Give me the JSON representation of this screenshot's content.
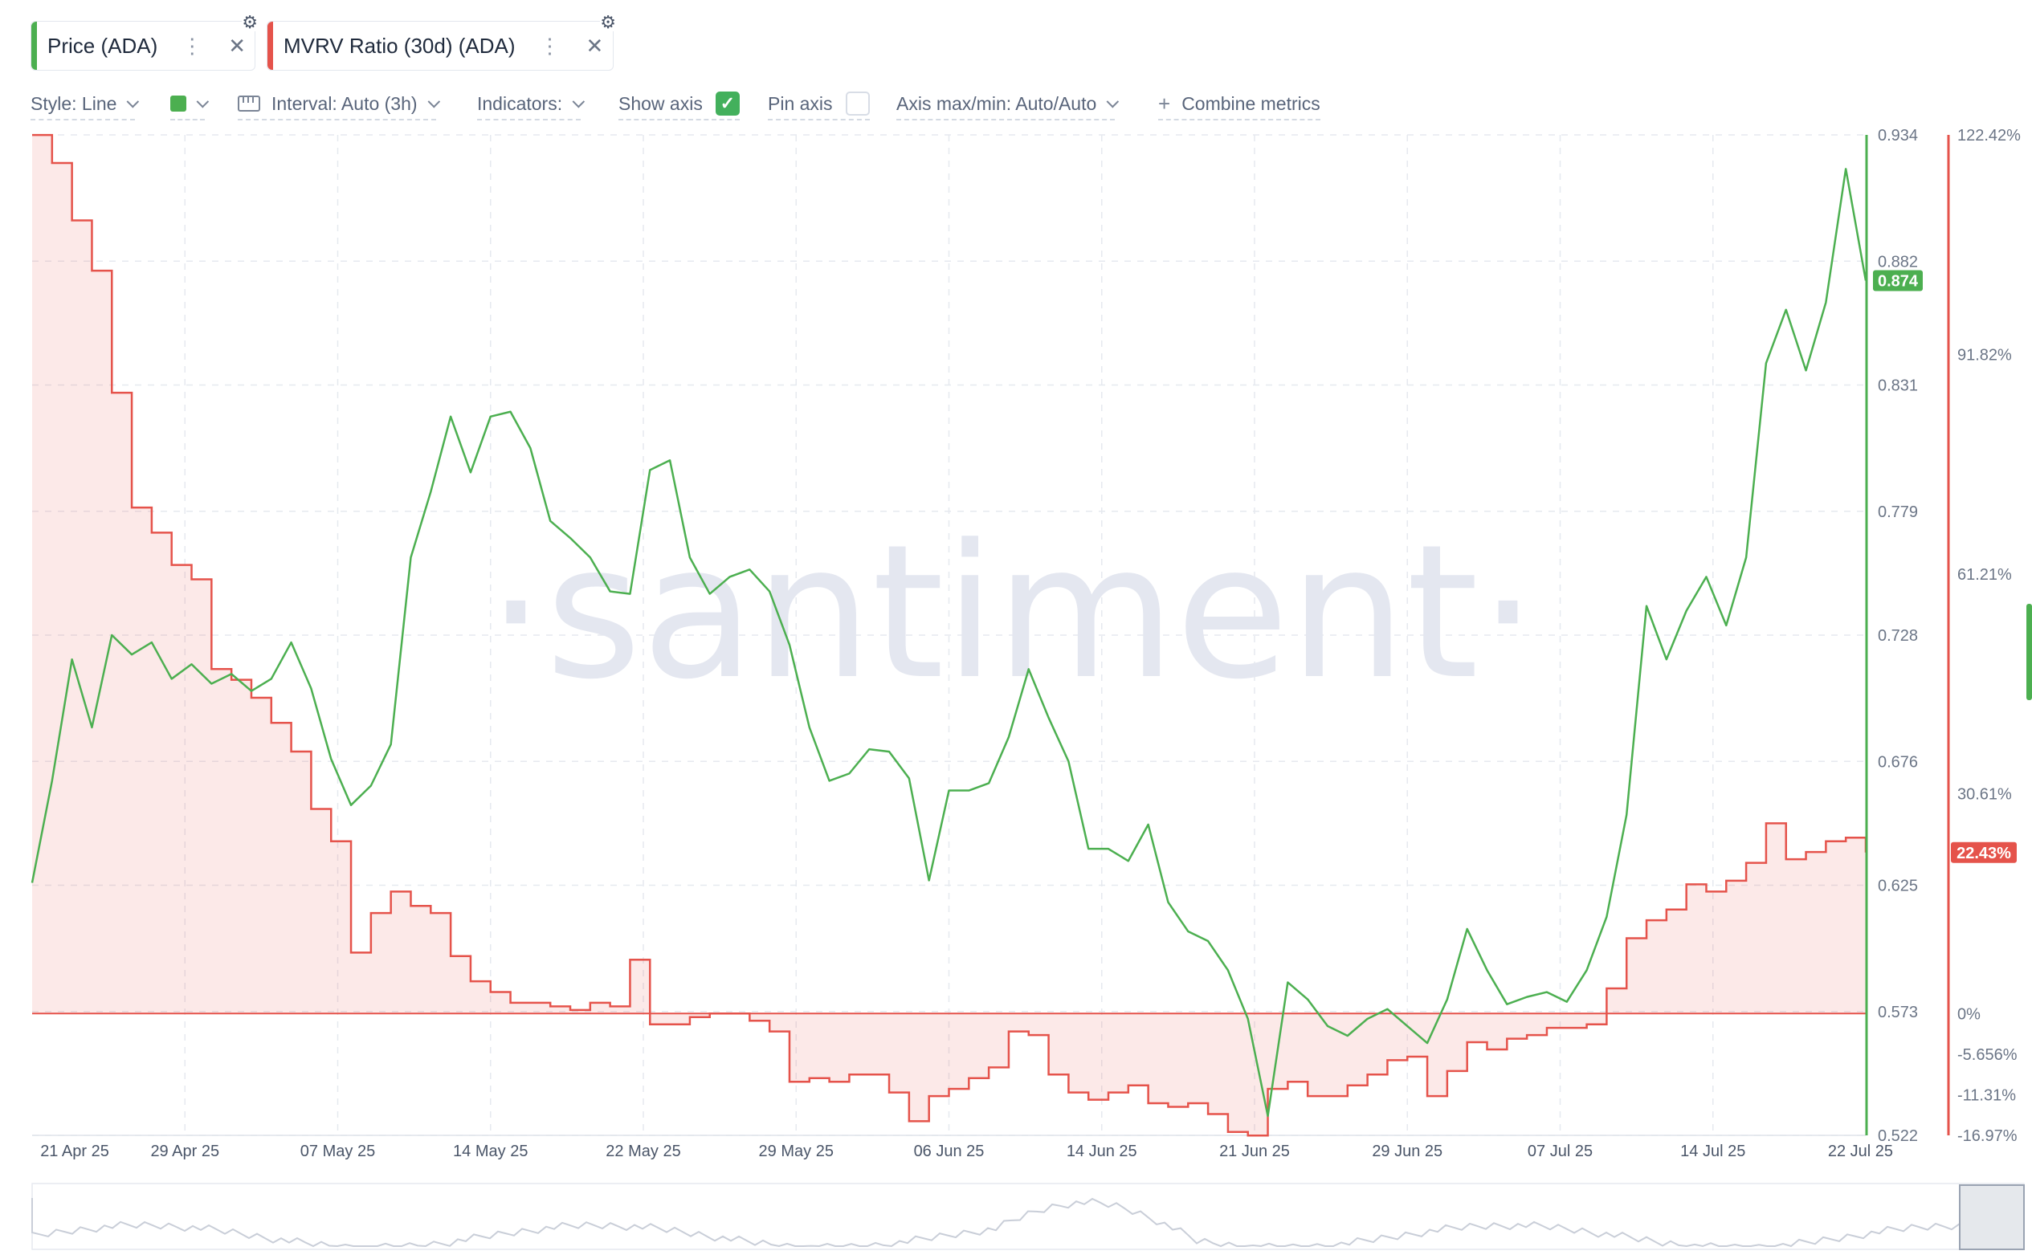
{
  "tabs": [
    {
      "label": "Price (ADA)",
      "color": "#4caf50"
    },
    {
      "label": "MVRV Ratio (30d) (ADA)",
      "color": "#e5534b"
    }
  ],
  "toolbar": {
    "style": "Style: Line",
    "interval": "Interval: Auto (3h)",
    "indicators": "Indicators:",
    "show_axis": "Show axis",
    "show_axis_checked": true,
    "pin_axis": "Pin axis",
    "pin_axis_checked": false,
    "axis_maxmin": "Axis max/min: Auto/Auto",
    "combine": "Combine metrics",
    "line_color": "#4caf50"
  },
  "watermark": "·santiment·",
  "chart_data": {
    "type": "line",
    "x_dates": [
      "21 Apr 25",
      "29 Apr 25",
      "07 May 25",
      "14 May 25",
      "22 May 25",
      "29 May 25",
      "06 Jun 25",
      "14 Jun 25",
      "21 Jun 25",
      "29 Jun 25",
      "07 Jul 25",
      "14 Jul 25",
      "22 Jul 25"
    ],
    "x_range": [
      "2025-04-21",
      "2025-07-22"
    ],
    "price_axis": {
      "ticks": [
        "0.934",
        "0.882",
        "0.831",
        "0.779",
        "0.728",
        "0.676",
        "0.625",
        "0.573",
        "0.522"
      ],
      "min": 0.522,
      "max": 0.934,
      "current_label": "0.874",
      "color": "#4caf50"
    },
    "mvrv_axis": {
      "ticks": [
        "122.42%",
        "91.82%",
        "61.21%",
        "30.61%",
        "0%",
        "-5.656%",
        "-11.31%",
        "-16.97%"
      ],
      "tick_values": [
        122.42,
        91.82,
        61.21,
        30.61,
        0,
        -5.656,
        -11.31,
        -16.97
      ],
      "current_label": "22.43%",
      "color": "#e5534b"
    },
    "series": [
      {
        "name": "Price (ADA)",
        "color": "#4caf50",
        "points": [
          [
            "2025-04-21",
            0.626
          ],
          [
            "2025-04-22",
            0.668
          ],
          [
            "2025-04-23",
            0.718
          ],
          [
            "2025-04-24",
            0.69
          ],
          [
            "2025-04-25",
            0.728
          ],
          [
            "2025-04-26",
            0.72
          ],
          [
            "2025-04-27",
            0.725
          ],
          [
            "2025-04-28",
            0.71
          ],
          [
            "2025-04-29",
            0.716
          ],
          [
            "2025-04-30",
            0.708
          ],
          [
            "2025-05-01",
            0.712
          ],
          [
            "2025-05-02",
            0.705
          ],
          [
            "2025-05-03",
            0.71
          ],
          [
            "2025-05-04",
            0.725
          ],
          [
            "2025-05-05",
            0.706
          ],
          [
            "2025-05-06",
            0.677
          ],
          [
            "2025-05-07",
            0.658
          ],
          [
            "2025-05-08",
            0.666
          ],
          [
            "2025-05-09",
            0.683
          ],
          [
            "2025-05-10",
            0.76
          ],
          [
            "2025-05-11",
            0.787
          ],
          [
            "2025-05-12",
            0.818
          ],
          [
            "2025-05-13",
            0.795
          ],
          [
            "2025-05-14",
            0.818
          ],
          [
            "2025-05-15",
            0.82
          ],
          [
            "2025-05-16",
            0.805
          ],
          [
            "2025-05-17",
            0.775
          ],
          [
            "2025-05-18",
            0.768
          ],
          [
            "2025-05-19",
            0.76
          ],
          [
            "2025-05-20",
            0.746
          ],
          [
            "2025-05-21",
            0.745
          ],
          [
            "2025-05-22",
            0.796
          ],
          [
            "2025-05-23",
            0.8
          ],
          [
            "2025-05-24",
            0.76
          ],
          [
            "2025-05-25",
            0.745
          ],
          [
            "2025-05-26",
            0.752
          ],
          [
            "2025-05-27",
            0.755
          ],
          [
            "2025-05-28",
            0.746
          ],
          [
            "2025-05-29",
            0.724
          ],
          [
            "2025-05-30",
            0.69
          ],
          [
            "2025-05-31",
            0.668
          ],
          [
            "2025-06-01",
            0.671
          ],
          [
            "2025-06-02",
            0.681
          ],
          [
            "2025-06-03",
            0.68
          ],
          [
            "2025-06-04",
            0.669
          ],
          [
            "2025-06-05",
            0.627
          ],
          [
            "2025-06-06",
            0.664
          ],
          [
            "2025-06-07",
            0.664
          ],
          [
            "2025-06-08",
            0.667
          ],
          [
            "2025-06-09",
            0.686
          ],
          [
            "2025-06-10",
            0.714
          ],
          [
            "2025-06-11",
            0.694
          ],
          [
            "2025-06-12",
            0.676
          ],
          [
            "2025-06-13",
            0.64
          ],
          [
            "2025-06-14",
            0.64
          ],
          [
            "2025-06-15",
            0.635
          ],
          [
            "2025-06-16",
            0.65
          ],
          [
            "2025-06-17",
            0.618
          ],
          [
            "2025-06-18",
            0.606
          ],
          [
            "2025-06-19",
            0.602
          ],
          [
            "2025-06-20",
            0.59
          ],
          [
            "2025-06-21",
            0.57
          ],
          [
            "2025-06-22",
            0.53
          ],
          [
            "2025-06-23",
            0.585
          ],
          [
            "2025-06-24",
            0.578
          ],
          [
            "2025-06-25",
            0.567
          ],
          [
            "2025-06-26",
            0.563
          ],
          [
            "2025-06-27",
            0.57
          ],
          [
            "2025-06-28",
            0.574
          ],
          [
            "2025-06-29",
            0.567
          ],
          [
            "2025-06-30",
            0.56
          ],
          [
            "2025-07-01",
            0.578
          ],
          [
            "2025-07-02",
            0.607
          ],
          [
            "2025-07-03",
            0.59
          ],
          [
            "2025-07-04",
            0.576
          ],
          [
            "2025-07-05",
            0.579
          ],
          [
            "2025-07-06",
            0.581
          ],
          [
            "2025-07-07",
            0.577
          ],
          [
            "2025-07-08",
            0.59
          ],
          [
            "2025-07-09",
            0.612
          ],
          [
            "2025-07-10",
            0.654
          ],
          [
            "2025-07-11",
            0.74
          ],
          [
            "2025-07-12",
            0.718
          ],
          [
            "2025-07-13",
            0.738
          ],
          [
            "2025-07-14",
            0.752
          ],
          [
            "2025-07-15",
            0.732
          ],
          [
            "2025-07-16",
            0.76
          ],
          [
            "2025-07-17",
            0.84
          ],
          [
            "2025-07-18",
            0.862
          ],
          [
            "2025-07-19",
            0.837
          ],
          [
            "2025-07-20",
            0.865
          ],
          [
            "2025-07-21",
            0.92
          ],
          [
            "2025-07-22",
            0.874
          ]
        ]
      },
      {
        "name": "MVRV Ratio (30d) (ADA)",
        "color": "#e5534b",
        "points": [
          [
            "2025-04-21",
            122.4
          ],
          [
            "2025-04-22",
            118.5
          ],
          [
            "2025-04-23",
            110.5
          ],
          [
            "2025-04-24",
            103.5
          ],
          [
            "2025-04-25",
            86.5
          ],
          [
            "2025-04-26",
            70.5
          ],
          [
            "2025-04-27",
            67.0
          ],
          [
            "2025-04-28",
            62.5
          ],
          [
            "2025-04-29",
            60.5
          ],
          [
            "2025-04-30",
            48.0
          ],
          [
            "2025-05-01",
            46.5
          ],
          [
            "2025-05-02",
            44.0
          ],
          [
            "2025-05-03",
            40.5
          ],
          [
            "2025-05-04",
            36.5
          ],
          [
            "2025-05-05",
            28.5
          ],
          [
            "2025-05-06",
            24.0
          ],
          [
            "2025-05-07",
            8.5
          ],
          [
            "2025-05-08",
            14.0
          ],
          [
            "2025-05-09",
            17.0
          ],
          [
            "2025-05-10",
            15.0
          ],
          [
            "2025-05-11",
            14.0
          ],
          [
            "2025-05-12",
            8.0
          ],
          [
            "2025-05-13",
            4.5
          ],
          [
            "2025-05-14",
            3.0
          ],
          [
            "2025-05-15",
            1.5
          ],
          [
            "2025-05-16",
            1.5
          ],
          [
            "2025-05-17",
            1.0
          ],
          [
            "2025-05-18",
            0.5
          ],
          [
            "2025-05-19",
            1.5
          ],
          [
            "2025-05-20",
            1.0
          ],
          [
            "2025-05-21",
            7.5
          ],
          [
            "2025-05-22",
            -1.5
          ],
          [
            "2025-05-23",
            -1.5
          ],
          [
            "2025-05-24",
            -0.5
          ],
          [
            "2025-05-25",
            0.0
          ],
          [
            "2025-05-26",
            0.0
          ],
          [
            "2025-05-27",
            -1.0
          ],
          [
            "2025-05-28",
            -2.5
          ],
          [
            "2025-05-29",
            -9.5
          ],
          [
            "2025-05-30",
            -9.0
          ],
          [
            "2025-05-31",
            -9.5
          ],
          [
            "2025-06-01",
            -8.5
          ],
          [
            "2025-06-02",
            -8.5
          ],
          [
            "2025-06-03",
            -11.0
          ],
          [
            "2025-06-04",
            -15.0
          ],
          [
            "2025-06-05",
            -11.5
          ],
          [
            "2025-06-06",
            -10.5
          ],
          [
            "2025-06-07",
            -9.0
          ],
          [
            "2025-06-08",
            -7.5
          ],
          [
            "2025-06-09",
            -2.5
          ],
          [
            "2025-06-10",
            -3.0
          ],
          [
            "2025-06-11",
            -8.5
          ],
          [
            "2025-06-12",
            -11.0
          ],
          [
            "2025-06-13",
            -12.0
          ],
          [
            "2025-06-14",
            -11.0
          ],
          [
            "2025-06-15",
            -10.0
          ],
          [
            "2025-06-16",
            -12.5
          ],
          [
            "2025-06-17",
            -13.0
          ],
          [
            "2025-06-18",
            -12.5
          ],
          [
            "2025-06-19",
            -14.0
          ],
          [
            "2025-06-20",
            -16.5
          ],
          [
            "2025-06-21",
            -17.0
          ],
          [
            "2025-06-22",
            -10.5
          ],
          [
            "2025-06-23",
            -9.5
          ],
          [
            "2025-06-24",
            -11.5
          ],
          [
            "2025-06-25",
            -11.5
          ],
          [
            "2025-06-26",
            -10.0
          ],
          [
            "2025-06-27",
            -8.5
          ],
          [
            "2025-06-28",
            -6.5
          ],
          [
            "2025-06-29",
            -6.0
          ],
          [
            "2025-06-30",
            -11.5
          ],
          [
            "2025-07-01",
            -8.0
          ],
          [
            "2025-07-02",
            -4.0
          ],
          [
            "2025-07-03",
            -5.0
          ],
          [
            "2025-07-04",
            -3.5
          ],
          [
            "2025-07-05",
            -3.0
          ],
          [
            "2025-07-06",
            -2.0
          ],
          [
            "2025-07-07",
            -2.0
          ],
          [
            "2025-07-08",
            -1.5
          ],
          [
            "2025-07-09",
            3.5
          ],
          [
            "2025-07-10",
            10.5
          ],
          [
            "2025-07-11",
            13.0
          ],
          [
            "2025-07-12",
            14.5
          ],
          [
            "2025-07-13",
            18.0
          ],
          [
            "2025-07-14",
            17.0
          ],
          [
            "2025-07-15",
            18.5
          ],
          [
            "2025-07-16",
            21.0
          ],
          [
            "2025-07-17",
            26.5
          ],
          [
            "2025-07-18",
            21.5
          ],
          [
            "2025-07-19",
            22.5
          ],
          [
            "2025-07-20",
            24.0
          ],
          [
            "2025-07-21",
            24.5
          ],
          [
            "2025-07-22",
            22.43
          ]
        ]
      }
    ]
  }
}
